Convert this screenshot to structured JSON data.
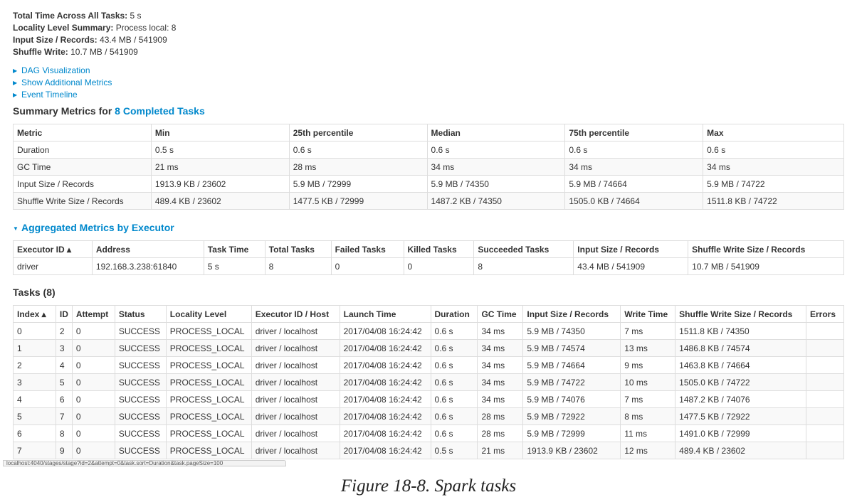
{
  "summary": {
    "total_time_label": "Total Time Across All Tasks:",
    "total_time_value": "5 s",
    "locality_label": "Locality Level Summary:",
    "locality_value": "Process local: 8",
    "input_label": "Input Size / Records:",
    "input_value": "43.4 MB / 541909",
    "shuffle_label": "Shuffle Write:",
    "shuffle_value": "10.7 MB / 541909"
  },
  "links": [
    "DAG Visualization",
    "Show Additional Metrics",
    "Event Timeline"
  ],
  "summary_metrics": {
    "title_prefix": "Summary Metrics for",
    "title_link": "8 Completed Tasks",
    "headers": [
      "Metric",
      "Min",
      "25th percentile",
      "Median",
      "75th percentile",
      "Max"
    ],
    "rows": [
      [
        "Duration",
        "0.5 s",
        "0.6 s",
        "0.6 s",
        "0.6 s",
        "0.6 s"
      ],
      [
        "GC Time",
        "21 ms",
        "28 ms",
        "34 ms",
        "34 ms",
        "34 ms"
      ],
      [
        "Input Size / Records",
        "1913.9 KB / 23602",
        "5.9 MB / 72999",
        "5.9 MB / 74350",
        "5.9 MB / 74664",
        "5.9 MB / 74722"
      ],
      [
        "Shuffle Write Size / Records",
        "489.4 KB / 23602",
        "1477.5 KB / 72999",
        "1487.2 KB / 74350",
        "1505.0 KB / 74664",
        "1511.8 KB / 74722"
      ]
    ]
  },
  "aggregated": {
    "title": "Aggregated Metrics by Executor",
    "headers": [
      "Executor ID ▴",
      "Address",
      "Task Time",
      "Total Tasks",
      "Failed Tasks",
      "Killed Tasks",
      "Succeeded Tasks",
      "Input Size / Records",
      "Shuffle Write Size / Records"
    ],
    "rows": [
      [
        "driver",
        "192.168.3.238:61840",
        "5 s",
        "8",
        "0",
        "0",
        "8",
        "43.4 MB / 541909",
        "10.7 MB / 541909"
      ]
    ]
  },
  "tasks": {
    "title": "Tasks (8)",
    "headers": [
      "Index ▴",
      "ID",
      "Attempt",
      "Status",
      "Locality Level",
      "Executor ID / Host",
      "Launch Time",
      "Duration",
      "GC Time",
      "Input Size / Records",
      "Write Time",
      "Shuffle Write Size / Records",
      "Errors"
    ],
    "rows": [
      [
        "0",
        "2",
        "0",
        "SUCCESS",
        "PROCESS_LOCAL",
        "driver / localhost",
        "2017/04/08 16:24:42",
        "0.6 s",
        "34 ms",
        "5.9 MB / 74350",
        "7 ms",
        "1511.8 KB / 74350",
        ""
      ],
      [
        "1",
        "3",
        "0",
        "SUCCESS",
        "PROCESS_LOCAL",
        "driver / localhost",
        "2017/04/08 16:24:42",
        "0.6 s",
        "34 ms",
        "5.9 MB / 74574",
        "13 ms",
        "1486.8 KB / 74574",
        ""
      ],
      [
        "2",
        "4",
        "0",
        "SUCCESS",
        "PROCESS_LOCAL",
        "driver / localhost",
        "2017/04/08 16:24:42",
        "0.6 s",
        "34 ms",
        "5.9 MB / 74664",
        "9 ms",
        "1463.8 KB / 74664",
        ""
      ],
      [
        "3",
        "5",
        "0",
        "SUCCESS",
        "PROCESS_LOCAL",
        "driver / localhost",
        "2017/04/08 16:24:42",
        "0.6 s",
        "34 ms",
        "5.9 MB / 74722",
        "10 ms",
        "1505.0 KB / 74722",
        ""
      ],
      [
        "4",
        "6",
        "0",
        "SUCCESS",
        "PROCESS_LOCAL",
        "driver / localhost",
        "2017/04/08 16:24:42",
        "0.6 s",
        "34 ms",
        "5.9 MB / 74076",
        "7 ms",
        "1487.2 KB / 74076",
        ""
      ],
      [
        "5",
        "7",
        "0",
        "SUCCESS",
        "PROCESS_LOCAL",
        "driver / localhost",
        "2017/04/08 16:24:42",
        "0.6 s",
        "28 ms",
        "5.9 MB / 72922",
        "8 ms",
        "1477.5 KB / 72922",
        ""
      ],
      [
        "6",
        "8",
        "0",
        "SUCCESS",
        "PROCESS_LOCAL",
        "driver / localhost",
        "2017/04/08 16:24:42",
        "0.6 s",
        "28 ms",
        "5.9 MB / 72999",
        "11 ms",
        "1491.0 KB / 72999",
        ""
      ],
      [
        "7",
        "9",
        "0",
        "SUCCESS",
        "PROCESS_LOCAL",
        "driver / localhost",
        "2017/04/08 16:24:42",
        "0.5 s",
        "21 ms",
        "1913.9 KB / 23602",
        "12 ms",
        "489.4 KB / 23602",
        ""
      ]
    ]
  },
  "status_bar_url": "localhost:4040/stages/stage?id=2&attempt=0&task.sort=Duration&task.pageSize=100",
  "caption": "Figure 18-8. Spark tasks",
  "icons": {
    "collapsed": "triangle-right-icon",
    "expanded": "triangle-down-icon"
  }
}
